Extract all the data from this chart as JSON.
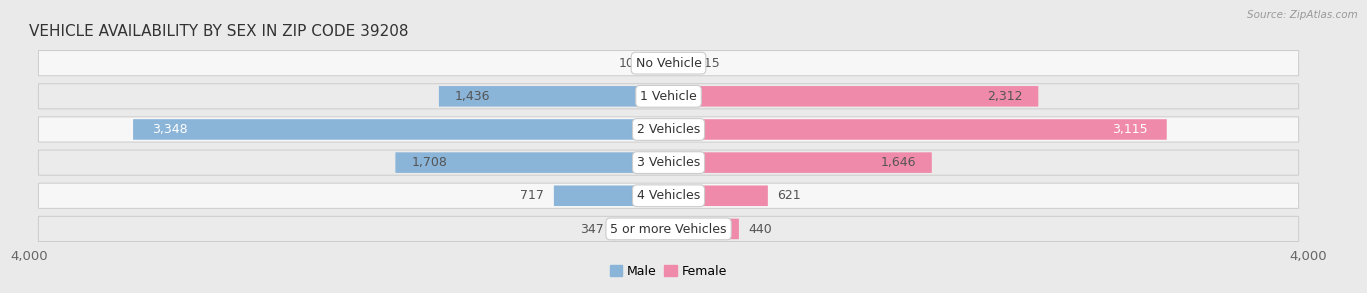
{
  "title": "VEHICLE AVAILABILITY BY SEX IN ZIP CODE 39208",
  "source": "Source: ZipAtlas.com",
  "categories": [
    "No Vehicle",
    "1 Vehicle",
    "2 Vehicles",
    "3 Vehicles",
    "4 Vehicles",
    "5 or more Vehicles"
  ],
  "male_values": [
    105,
    1436,
    3348,
    1708,
    717,
    347
  ],
  "female_values": [
    115,
    2312,
    3115,
    1646,
    621,
    440
  ],
  "male_color": "#8ab4d8",
  "female_color": "#f08aaa",
  "male_label": "Male",
  "female_label": "Female",
  "xlim": 4000,
  "background_color": "#eaeaea",
  "row_light": "#f7f7f7",
  "row_dark": "#ebebeb",
  "title_fontsize": 11,
  "label_fontsize": 9,
  "value_fontsize": 9,
  "tick_fontsize": 9.5,
  "bar_height": 0.62
}
